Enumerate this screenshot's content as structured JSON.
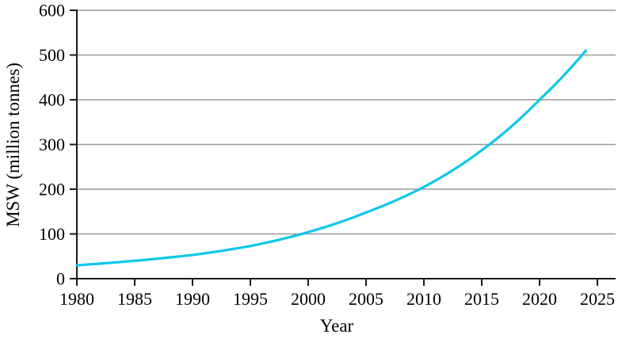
{
  "chart_data": {
    "type": "line",
    "title": "",
    "xlabel": "Year",
    "ylabel": "MSW (million tonnes)",
    "x": [
      1980,
      1985,
      1990,
      1995,
      2000,
      2005,
      2010,
      2015,
      2020,
      2024
    ],
    "series": [
      {
        "name": "MSW",
        "values": [
          30,
          40,
          53,
          73,
          104,
          148,
          205,
          287,
          400,
          510
        ]
      }
    ],
    "x_ticks": [
      1980,
      1985,
      1990,
      1995,
      2000,
      2005,
      2010,
      2015,
      2020,
      2025
    ],
    "y_ticks": [
      0,
      100,
      200,
      300,
      400,
      500,
      600
    ],
    "xlim": [
      1980,
      2025
    ],
    "ylim": [
      0,
      600
    ],
    "grid": "horizontal",
    "legend": "none",
    "line_color": "#0cc8e8",
    "grid_color": "#999999",
    "axis_color": "#1a1a1a",
    "text_color": "#000000",
    "background_color": "#ffffff"
  }
}
